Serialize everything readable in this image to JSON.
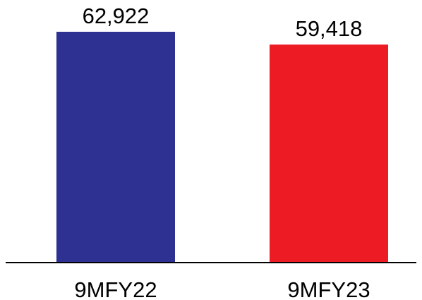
{
  "chart_data": {
    "type": "bar",
    "categories": [
      "9MFY22",
      "9MFY23"
    ],
    "values": [
      62922,
      59418
    ],
    "data_labels": [
      "62,922",
      "59,418"
    ],
    "colors": [
      "#2e3192",
      "#ed1c24"
    ],
    "title": "",
    "xlabel": "",
    "ylabel": "",
    "ylim": [
      0,
      62922
    ],
    "grid": false,
    "legend": "none"
  }
}
